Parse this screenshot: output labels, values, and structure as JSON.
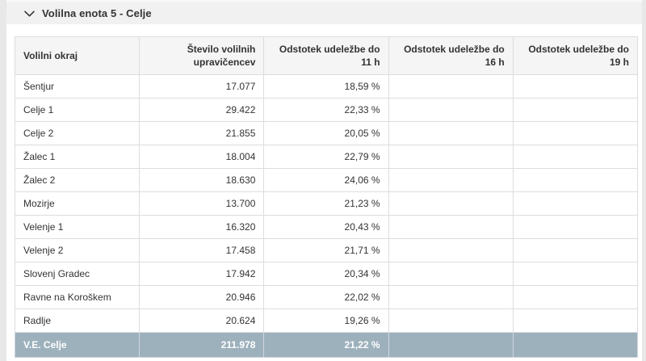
{
  "page": {
    "accordion_title": "Volilna enota 5 - Celje"
  },
  "icons": {
    "chevron_down": "collapse-expand chevron"
  },
  "table": {
    "columns": [
      {
        "id": "district",
        "label": "Volilni okraj"
      },
      {
        "id": "voters",
        "label": "Število volilnih upravičencev"
      },
      {
        "id": "pct11",
        "label": "Odstotek udeležbe do 11 h"
      },
      {
        "id": "pct16",
        "label": "Odstotek udeležbe do 16 h"
      },
      {
        "id": "pct19",
        "label": "Odstotek udeležbe do 19 h"
      }
    ],
    "rows": [
      {
        "district": "Šentjur",
        "voters": "17.077",
        "pct11": "18,59 %",
        "pct16": "",
        "pct19": ""
      },
      {
        "district": "Celje 1",
        "voters": "29.422",
        "pct11": "22,33 %",
        "pct16": "",
        "pct19": ""
      },
      {
        "district": "Celje 2",
        "voters": "21.855",
        "pct11": "20,05 %",
        "pct16": "",
        "pct19": ""
      },
      {
        "district": "Žalec 1",
        "voters": "18.004",
        "pct11": "22,79 %",
        "pct16": "",
        "pct19": ""
      },
      {
        "district": "Žalec 2",
        "voters": "18.630",
        "pct11": "24,06 %",
        "pct16": "",
        "pct19": ""
      },
      {
        "district": "Mozirje",
        "voters": "13.700",
        "pct11": "21,23 %",
        "pct16": "",
        "pct19": ""
      },
      {
        "district": "Velenje 1",
        "voters": "16.320",
        "pct11": "20,43 %",
        "pct16": "",
        "pct19": ""
      },
      {
        "district": "Velenje 2",
        "voters": "17.458",
        "pct11": "21,71 %",
        "pct16": "",
        "pct19": ""
      },
      {
        "district": "Slovenj Gradec",
        "voters": "17.942",
        "pct11": "20,34 %",
        "pct16": "",
        "pct19": ""
      },
      {
        "district": "Ravne na Koroškem",
        "voters": "20.946",
        "pct11": "22,02 %",
        "pct16": "",
        "pct19": ""
      },
      {
        "district": "Radlje",
        "voters": "20.624",
        "pct11": "19,26 %",
        "pct16": "",
        "pct19": ""
      }
    ],
    "total": {
      "district": "V.E. Celje",
      "voters": "211.978",
      "pct11": "21,22 %",
      "pct16": "",
      "pct19": ""
    }
  },
  "colors": {
    "total_row_bg": "#9db1bd",
    "total_row_text": "#ffffff",
    "header_row_bg": "#f5f5f5",
    "accordion_bar_bg": "#f1f1f1",
    "table_border": "#dddddd",
    "text": "#333333",
    "page_bg": "#e8e8e8"
  }
}
